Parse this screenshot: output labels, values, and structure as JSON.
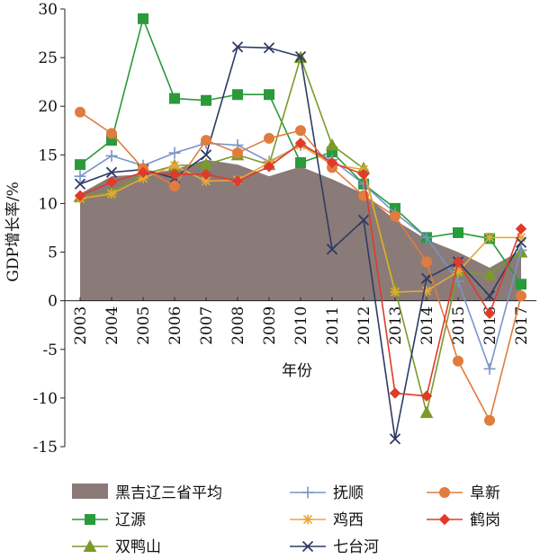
{
  "chart_data": {
    "type": "line",
    "xlabel": "年份",
    "ylabel": "GDP增长率/%",
    "ylim": [
      -15,
      30
    ],
    "yticks": [
      -15,
      -10,
      -5,
      0,
      5,
      10,
      15,
      20,
      25,
      30
    ],
    "categories": [
      "2003",
      "2004",
      "2005",
      "2006",
      "2007",
      "2008",
      "2009",
      "2010",
      "2011",
      "2012",
      "2013",
      "2014",
      "2015",
      "2016",
      "2017"
    ],
    "legend_position": "bottom",
    "area": {
      "name": "黑吉辽三省平均",
      "color": "#8a7b78",
      "values": [
        11.0,
        12.8,
        13.0,
        13.5,
        14.5,
        14.0,
        12.8,
        13.8,
        12.5,
        11.0,
        8.3,
        6.3,
        5.0,
        3.4,
        5.2
      ]
    },
    "series": [
      {
        "name": "辽源",
        "color": "#2a9a3a",
        "marker": "square",
        "values": [
          14.0,
          16.5,
          29.0,
          20.8,
          20.6,
          21.2,
          21.2,
          14.2,
          15.3,
          12.0,
          9.5,
          6.5,
          7.0,
          6.4,
          1.7
        ]
      },
      {
        "name": "双鸭山",
        "color": "#7a9a2a",
        "marker": "triangle",
        "values": [
          10.7,
          11.2,
          13.0,
          13.9,
          14.0,
          15.0,
          14.0,
          25.0,
          16.0,
          13.6,
          1.2,
          -11.5,
          3.0,
          2.7,
          5.0
        ]
      },
      {
        "name": "抚顺",
        "color": "#7895c8",
        "marker": "plus",
        "values": [
          12.8,
          14.9,
          13.9,
          15.2,
          16.2,
          16.0,
          14.3,
          16.0,
          14.5,
          12.0,
          9.0,
          6.5,
          2.0,
          -7.0,
          5.2
        ]
      },
      {
        "name": "鸡西",
        "color": "#e8a838",
        "marker": "star",
        "values": [
          10.5,
          11.0,
          12.6,
          13.9,
          12.3,
          12.4,
          14.2,
          16.0,
          14.0,
          13.5,
          0.9,
          1.0,
          3.0,
          6.5,
          6.5
        ]
      },
      {
        "name": "七台河",
        "color": "#2f3a64",
        "marker": "x",
        "values": [
          12.0,
          13.2,
          13.5,
          12.6,
          15.0,
          26.1,
          26.0,
          25.1,
          5.3,
          8.3,
          -14.2,
          2.3,
          4.0,
          0.5,
          6.0
        ]
      },
      {
        "name": "阜新",
        "color": "#e07c3e",
        "marker": "circle",
        "values": [
          19.4,
          17.2,
          13.6,
          11.8,
          16.5,
          15.2,
          16.7,
          17.5,
          13.7,
          10.8,
          8.7,
          4.0,
          -6.2,
          -12.3,
          0.5
        ]
      },
      {
        "name": "鹤岗",
        "color": "#e03a2a",
        "marker": "diamond",
        "values": [
          10.8,
          12.2,
          13.2,
          13.0,
          13.0,
          12.3,
          13.8,
          16.2,
          14.2,
          13.0,
          -9.5,
          -9.8,
          4.0,
          -1.3,
          7.4
        ]
      }
    ]
  }
}
